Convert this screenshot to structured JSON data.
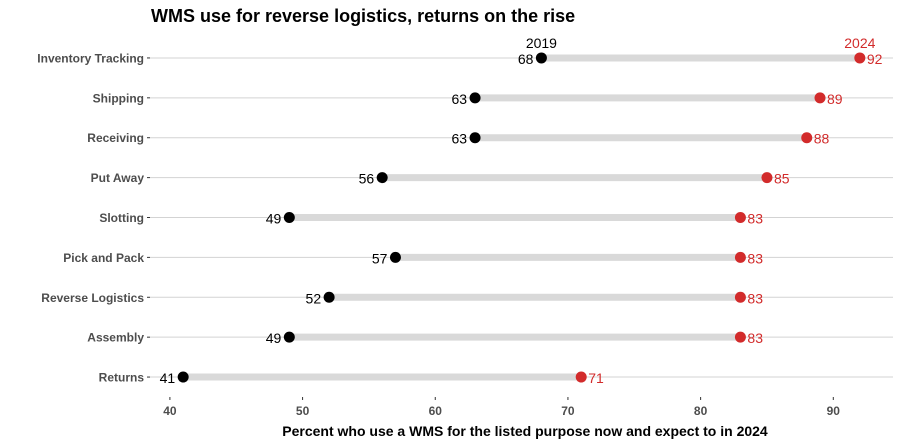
{
  "chart_data": {
    "type": "dumbbell",
    "title": "WMS use for reverse logistics, returns on the rise",
    "xlabel": "Percent who use a WMS for the listed purpose now and expect to in 2024",
    "ylabel": "",
    "xlim": [
      38.5,
      94.5
    ],
    "xticks": [
      40,
      50,
      60,
      70,
      80,
      90
    ],
    "grid": "horizontal",
    "categories": [
      "Inventory Tracking",
      "Shipping",
      "Receiving",
      "Put Away",
      "Slotting",
      "Pick and Pack",
      "Reverse Logistics",
      "Assembly",
      "Returns"
    ],
    "series": [
      {
        "name": "2019",
        "values": [
          68,
          63,
          63,
          56,
          49,
          57,
          52,
          49,
          41
        ]
      },
      {
        "name": "2024",
        "values": [
          92,
          89,
          88,
          85,
          83,
          83,
          83,
          83,
          71
        ]
      }
    ],
    "colors": {
      "2019": "#000000",
      "2024": "#d22b2b",
      "bar": "#d9d9d9",
      "grid": "#d3d3d3",
      "axis_text": "#4d4d4d"
    }
  }
}
